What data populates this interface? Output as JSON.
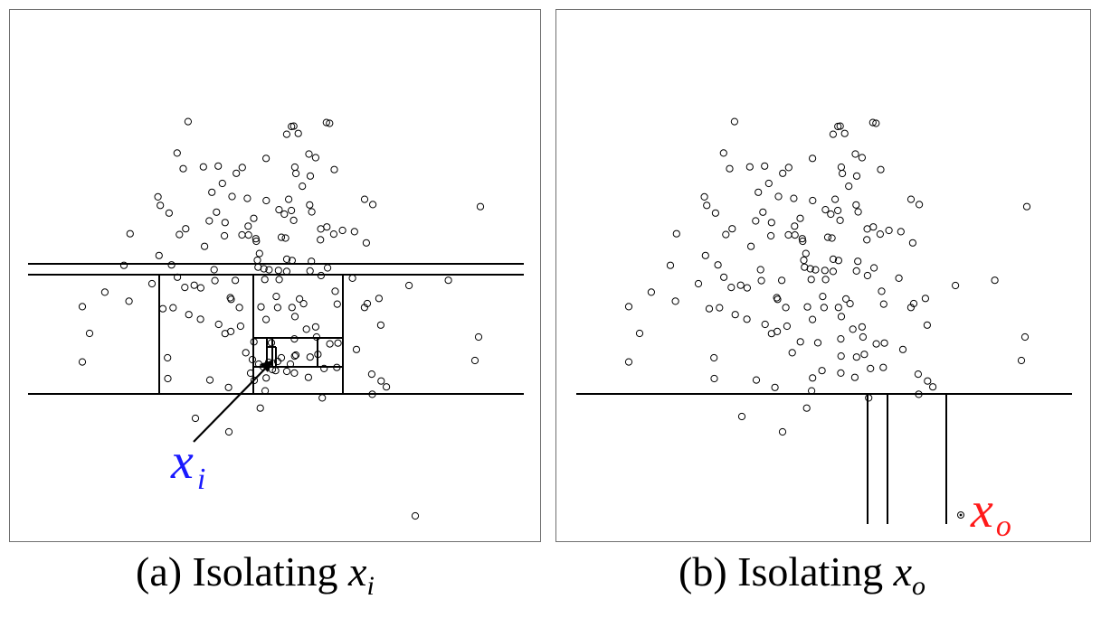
{
  "panel_a": {
    "point_label": {
      "base": "x",
      "sub": "i",
      "color": "#1a1aff"
    },
    "caption": {
      "text": "(a) Isolating ",
      "math_base": "x",
      "math_sub": "i"
    }
  },
  "panel_b": {
    "point_label": {
      "base": "x",
      "sub": "o",
      "color": "#ff1a1a"
    },
    "caption": {
      "text": "(b) Isolating ",
      "math_base": "x",
      "math_sub": "o"
    }
  },
  "colors": {
    "point_stroke": "#000000",
    "partition_line": "#000000",
    "border": "#707070"
  }
}
